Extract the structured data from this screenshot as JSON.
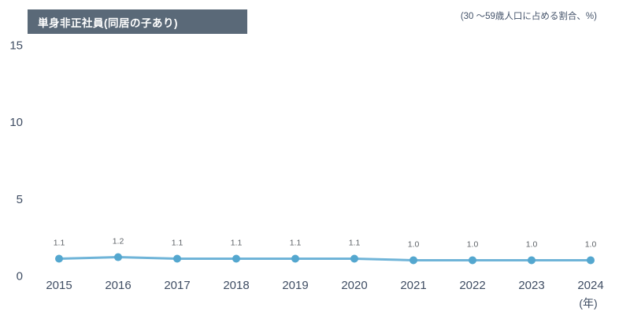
{
  "chart_data": {
    "type": "line",
    "title": "単身非正社員(同居の子あり)",
    "unit_note": "(30 〜59歳人口に占める割合、%)",
    "x": [
      "2015",
      "2016",
      "2017",
      "2018",
      "2019",
      "2020",
      "2021",
      "2022",
      "2023",
      "2024"
    ],
    "xlabel": "(年)",
    "ylabel": "",
    "series": [
      {
        "name": "単身非正社員(同居の子あり)",
        "values": [
          1.1,
          1.2,
          1.1,
          1.1,
          1.1,
          1.1,
          1.0,
          1.0,
          1.0,
          1.0
        ],
        "labels": [
          "1.1",
          "1.2",
          "1.1",
          "1.1",
          "1.1",
          "1.1",
          "1.0",
          "1.0",
          "1.0",
          "1.0"
        ]
      }
    ],
    "yticks": [
      "0",
      "5",
      "10",
      "15"
    ],
    "ylim": [
      0,
      16
    ],
    "grid": false,
    "legend_position": "none",
    "colors": {
      "line": "#6fb4d8",
      "marker": "#54a7cf",
      "axis_text": "#3f4d63",
      "data_label": "#5f6368",
      "title_bg": "#5a6978",
      "title_text": "#ffffff"
    }
  }
}
